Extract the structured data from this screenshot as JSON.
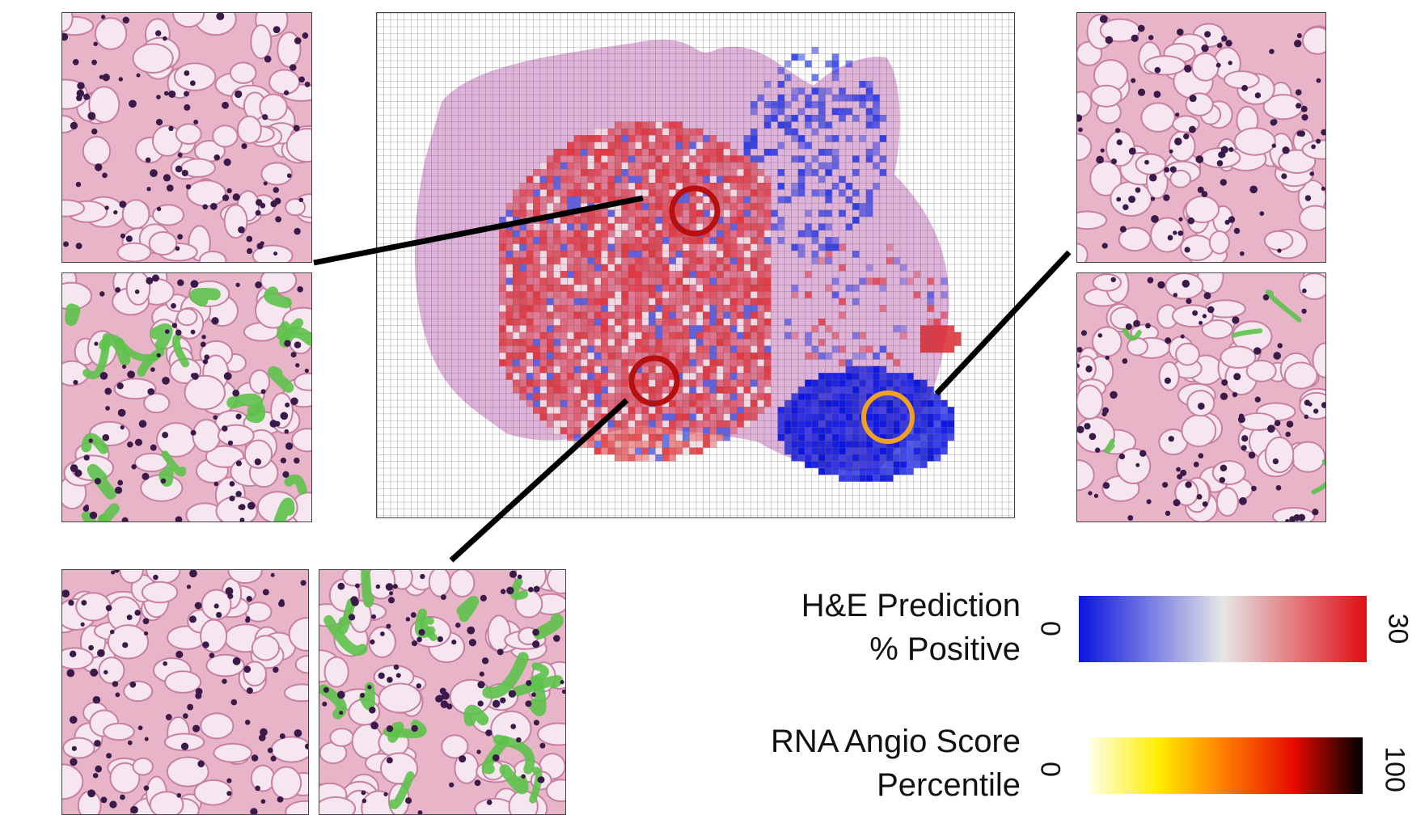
{
  "legend": {
    "he": {
      "title_line1": "H&E Prediction",
      "title_line2": "% Positive",
      "min": "0",
      "max": "30",
      "colors": [
        "#0a14e0",
        "#e6e6e6",
        "#e00d14"
      ]
    },
    "rna": {
      "title_line1": "RNA Angio Score",
      "title_line2": "Percentile",
      "min": "0",
      "max": "100",
      "colors": [
        "#ffffe8",
        "#ffee00",
        "#ff7a00",
        "#e60a00",
        "#000000"
      ]
    }
  },
  "markers": {
    "red_circle_color": "#b81010",
    "orange_circle_color": "#f0a020"
  },
  "palette": {
    "tissue_pink": "#e9b6cc",
    "nuclei": "#3a1a4a",
    "vessel_green": "#5dc24a",
    "slide_background": "#d6a9d8"
  }
}
